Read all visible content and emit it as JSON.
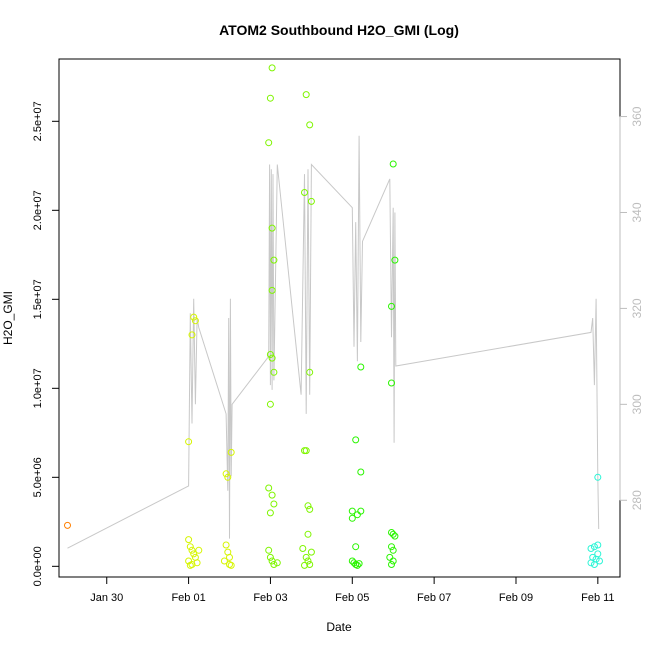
{
  "chart_data": {
    "type": "scatter",
    "title": "ATOM2 Southbound H2O_GMI (Log)",
    "xlabel": "Date",
    "ylabel": "H2O_GMI",
    "x_ticks": [
      "Jan 30",
      "Feb 01",
      "Feb 03",
      "Feb 05",
      "Feb 07",
      "Feb 09",
      "Feb 11"
    ],
    "y_ticks": [
      "0.0e+00",
      "5.0e+06",
      "1.0e+07",
      "1.5e+07",
      "2.0e+07",
      "2.5e+07"
    ],
    "y_ticks_right": [
      "280",
      "300",
      "320",
      "340",
      "360"
    ],
    "xlim": [
      "2017-01-28T20:00",
      "2017-02-11T13:00"
    ],
    "ylim": [
      -600000,
      28500000
    ],
    "ylim_right": [
      264,
      372
    ],
    "grid": false,
    "legend": "none",
    "series": [
      {
        "color": "#ff7f00",
        "points": [
          [
            "2017-01-29T01:00",
            2300000
          ]
        ]
      },
      {
        "color": "#d6f500",
        "points": [
          [
            "2017-02-01T00:00",
            7000000
          ],
          [
            "2017-02-01T02:00",
            13000000
          ],
          [
            "2017-02-01T03:00",
            14000000
          ],
          [
            "2017-02-01T04:00",
            13800000
          ],
          [
            "2017-02-01T00:00",
            1500000
          ],
          [
            "2017-02-01T01:00",
            1100000
          ],
          [
            "2017-02-01T02:00",
            900000
          ],
          [
            "2017-02-01T03:00",
            700000
          ],
          [
            "2017-02-01T04:00",
            500000
          ],
          [
            "2017-02-01T00:00",
            300000
          ],
          [
            "2017-02-01T02:00",
            100000
          ],
          [
            "2017-02-01T05:00",
            200000
          ],
          [
            "2017-02-01T01:00",
            50000
          ],
          [
            "2017-02-01T06:00",
            900000
          ],
          [
            "2017-02-01T22:00",
            5200000
          ],
          [
            "2017-02-01T23:00",
            5000000
          ],
          [
            "2017-02-02T01:00",
            6400000
          ],
          [
            "2017-02-01T22:00",
            1200000
          ],
          [
            "2017-02-01T23:00",
            800000
          ],
          [
            "2017-02-02T00:00",
            500000
          ],
          [
            "2017-02-01T21:00",
            300000
          ],
          [
            "2017-02-02T00:00",
            100000
          ],
          [
            "2017-02-02T01:00",
            50000
          ]
        ]
      },
      {
        "color": "#7ff500",
        "points": [
          [
            "2017-02-03T01:00",
            28000000
          ],
          [
            "2017-02-03T00:00",
            26300000
          ],
          [
            "2017-02-02T23:00",
            23800000
          ],
          [
            "2017-02-03T01:00",
            19000000
          ],
          [
            "2017-02-03T02:00",
            17200000
          ],
          [
            "2017-02-03T01:00",
            15500000
          ],
          [
            "2017-02-03T00:00",
            11900000
          ],
          [
            "2017-02-03T01:00",
            11700000
          ],
          [
            "2017-02-03T02:00",
            10900000
          ],
          [
            "2017-02-03T00:00",
            9100000
          ],
          [
            "2017-02-02T23:00",
            4400000
          ],
          [
            "2017-02-03T01:00",
            4000000
          ],
          [
            "2017-02-03T02:00",
            3500000
          ],
          [
            "2017-02-03T00:00",
            3000000
          ],
          [
            "2017-02-02T23:00",
            900000
          ],
          [
            "2017-02-03T00:00",
            500000
          ],
          [
            "2017-02-03T01:00",
            300000
          ],
          [
            "2017-02-03T02:00",
            100000
          ],
          [
            "2017-02-03T04:00",
            200000
          ],
          [
            "2017-02-03T21:00",
            26500000
          ],
          [
            "2017-02-03T23:00",
            24800000
          ],
          [
            "2017-02-03T20:00",
            21000000
          ],
          [
            "2017-02-04T00:00",
            20500000
          ],
          [
            "2017-02-03T23:00",
            10900000
          ],
          [
            "2017-02-03T20:00",
            6500000
          ],
          [
            "2017-02-03T21:00",
            6500000
          ],
          [
            "2017-02-03T22:00",
            3400000
          ],
          [
            "2017-02-03T23:00",
            3200000
          ],
          [
            "2017-02-03T22:00",
            1800000
          ],
          [
            "2017-02-03T19:00",
            1000000
          ],
          [
            "2017-02-03T21:00",
            500000
          ],
          [
            "2017-02-03T22:00",
            300000
          ],
          [
            "2017-02-03T23:00",
            100000
          ],
          [
            "2017-02-03T20:00",
            50000
          ],
          [
            "2017-02-04T00:00",
            800000
          ]
        ]
      },
      {
        "color": "#2af500",
        "points": [
          [
            "2017-02-05T02:00",
            7100000
          ],
          [
            "2017-02-05T05:00",
            11200000
          ],
          [
            "2017-02-05T05:00",
            5300000
          ],
          [
            "2017-02-05T00:00",
            3100000
          ],
          [
            "2017-02-05T03:00",
            2900000
          ],
          [
            "2017-02-05T05:00",
            3100000
          ],
          [
            "2017-02-05T00:00",
            2700000
          ],
          [
            "2017-02-05T02:00",
            1100000
          ],
          [
            "2017-02-05T00:00",
            300000
          ],
          [
            "2017-02-05T01:00",
            200000
          ],
          [
            "2017-02-05T02:00",
            100000
          ],
          [
            "2017-02-05T03:00",
            50000
          ],
          [
            "2017-02-05T04:00",
            150000
          ],
          [
            "2017-02-06T00:00",
            22600000
          ],
          [
            "2017-02-06T01:00",
            17200000
          ],
          [
            "2017-02-05T23:00",
            14600000
          ],
          [
            "2017-02-05T23:00",
            10300000
          ],
          [
            "2017-02-05T23:00",
            1900000
          ],
          [
            "2017-02-06T00:00",
            1800000
          ],
          [
            "2017-02-06T01:00",
            1700000
          ],
          [
            "2017-02-05T23:00",
            1100000
          ],
          [
            "2017-02-06T00:00",
            900000
          ],
          [
            "2017-02-05T22:00",
            500000
          ],
          [
            "2017-02-06T00:00",
            300000
          ],
          [
            "2017-02-05T23:00",
            100000
          ]
        ]
      },
      {
        "color": "#2af5d6",
        "points": [
          [
            "2017-02-11T00:00",
            5000000
          ],
          [
            "2017-02-10T20:00",
            1000000
          ],
          [
            "2017-02-10T22:00",
            1100000
          ],
          [
            "2017-02-11T00:00",
            1200000
          ],
          [
            "2017-02-10T21:00",
            500000
          ],
          [
            "2017-02-10T23:00",
            400000
          ],
          [
            "2017-02-11T00:00",
            700000
          ],
          [
            "2017-02-10T20:00",
            200000
          ],
          [
            "2017-02-10T22:00",
            100000
          ],
          [
            "2017-02-11T01:00",
            300000
          ]
        ]
      }
    ],
    "secondary_line": {
      "color": "#c8c8c8",
      "y_axis": "right",
      "points": [
        [
          "2017-01-29T01:00",
          270
        ],
        [
          "2017-02-01T00:00",
          283
        ],
        [
          "2017-02-01T01:00",
          319
        ],
        [
          "2017-02-01T02:00",
          296
        ],
        [
          "2017-02-01T03:00",
          322
        ],
        [
          "2017-02-01T04:00",
          300
        ],
        [
          "2017-02-01T05:00",
          318
        ],
        [
          "2017-02-01T06:00",
          316
        ],
        [
          "2017-02-01T22:00",
          298
        ],
        [
          "2017-02-01T23:00",
          282
        ],
        [
          "2017-02-01T23:30",
          318
        ],
        [
          "2017-02-02T00:00",
          272
        ],
        [
          "2017-02-02T00:30",
          322
        ],
        [
          "2017-02-02T01:00",
          285
        ],
        [
          "2017-02-02T01:30",
          300
        ],
        [
          "2017-02-02T23:00",
          310
        ],
        [
          "2017-02-02T23:30",
          350
        ],
        [
          "2017-02-03T00:00",
          304
        ],
        [
          "2017-02-03T00:30",
          349
        ],
        [
          "2017-02-03T01:00",
          303
        ],
        [
          "2017-02-03T01:30",
          348
        ],
        [
          "2017-02-03T02:00",
          305
        ],
        [
          "2017-02-03T04:00",
          350
        ],
        [
          "2017-02-03T18:00",
          302
        ],
        [
          "2017-02-03T20:00",
          348
        ],
        [
          "2017-02-03T21:00",
          298
        ],
        [
          "2017-02-03T22:00",
          349
        ],
        [
          "2017-02-03T23:00",
          302
        ],
        [
          "2017-02-04T00:00",
          350
        ],
        [
          "2017-02-05T00:00",
          341
        ],
        [
          "2017-02-05T01:00",
          312
        ],
        [
          "2017-02-05T02:00",
          338
        ],
        [
          "2017-02-05T03:00",
          309
        ],
        [
          "2017-02-05T04:00",
          356
        ],
        [
          "2017-02-05T05:00",
          313
        ],
        [
          "2017-02-05T06:00",
          334
        ],
        [
          "2017-02-05T22:00",
          347
        ],
        [
          "2017-02-05T23:00",
          314
        ],
        [
          "2017-02-06T00:00",
          341
        ],
        [
          "2017-02-06T00:30",
          292
        ],
        [
          "2017-02-06T01:00",
          340
        ],
        [
          "2017-02-06T01:30",
          308
        ],
        [
          "2017-02-10T20:00",
          315
        ],
        [
          "2017-02-10T21:00",
          318
        ],
        [
          "2017-02-10T22:00",
          304
        ],
        [
          "2017-02-10T23:00",
          322
        ],
        [
          "2017-02-11T00:00",
          285
        ],
        [
          "2017-02-11T00:30",
          274
        ]
      ]
    }
  }
}
